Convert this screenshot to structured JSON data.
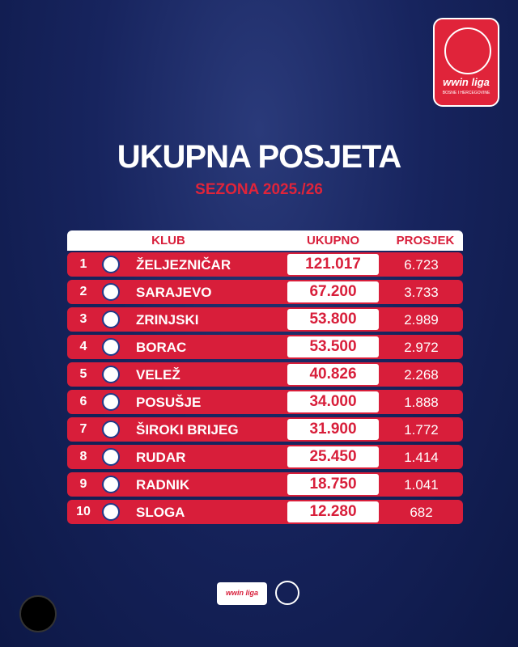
{
  "logo": {
    "brand": "wwin liga",
    "region": "BOSNE I HERCEGOVINE"
  },
  "header": {
    "title": "UKUPNA POSJETA",
    "subtitle": "SEZONA 2025./26"
  },
  "table": {
    "columns": [
      "KLUB",
      "UKUPNO",
      "PROSJEK"
    ],
    "rows": [
      [
        "1",
        "ŽELJEZNIČAR",
        "121.017",
        "6.723"
      ],
      [
        "2",
        "SARAJEVO",
        "67.200",
        "3.733"
      ],
      [
        "3",
        "ZRINJSKI",
        "53.800",
        "2.989"
      ],
      [
        "4",
        "BORAC",
        "53.500",
        "2.972"
      ],
      [
        "5",
        "VELEŽ",
        "40.826",
        "2.268"
      ],
      [
        "6",
        "POSUŠJE",
        "34.000",
        "1.888"
      ],
      [
        "7",
        "ŠIROKI BRIJEG",
        "31.900",
        "1.772"
      ],
      [
        "8",
        "RUDAR",
        "25.450",
        "1.414"
      ],
      [
        "9",
        "RADNIK",
        "18.750",
        "1.041"
      ],
      [
        "10",
        "SLOGA",
        "12.280",
        "682"
      ]
    ]
  },
  "footer": {
    "brand": "wwin liga"
  }
}
